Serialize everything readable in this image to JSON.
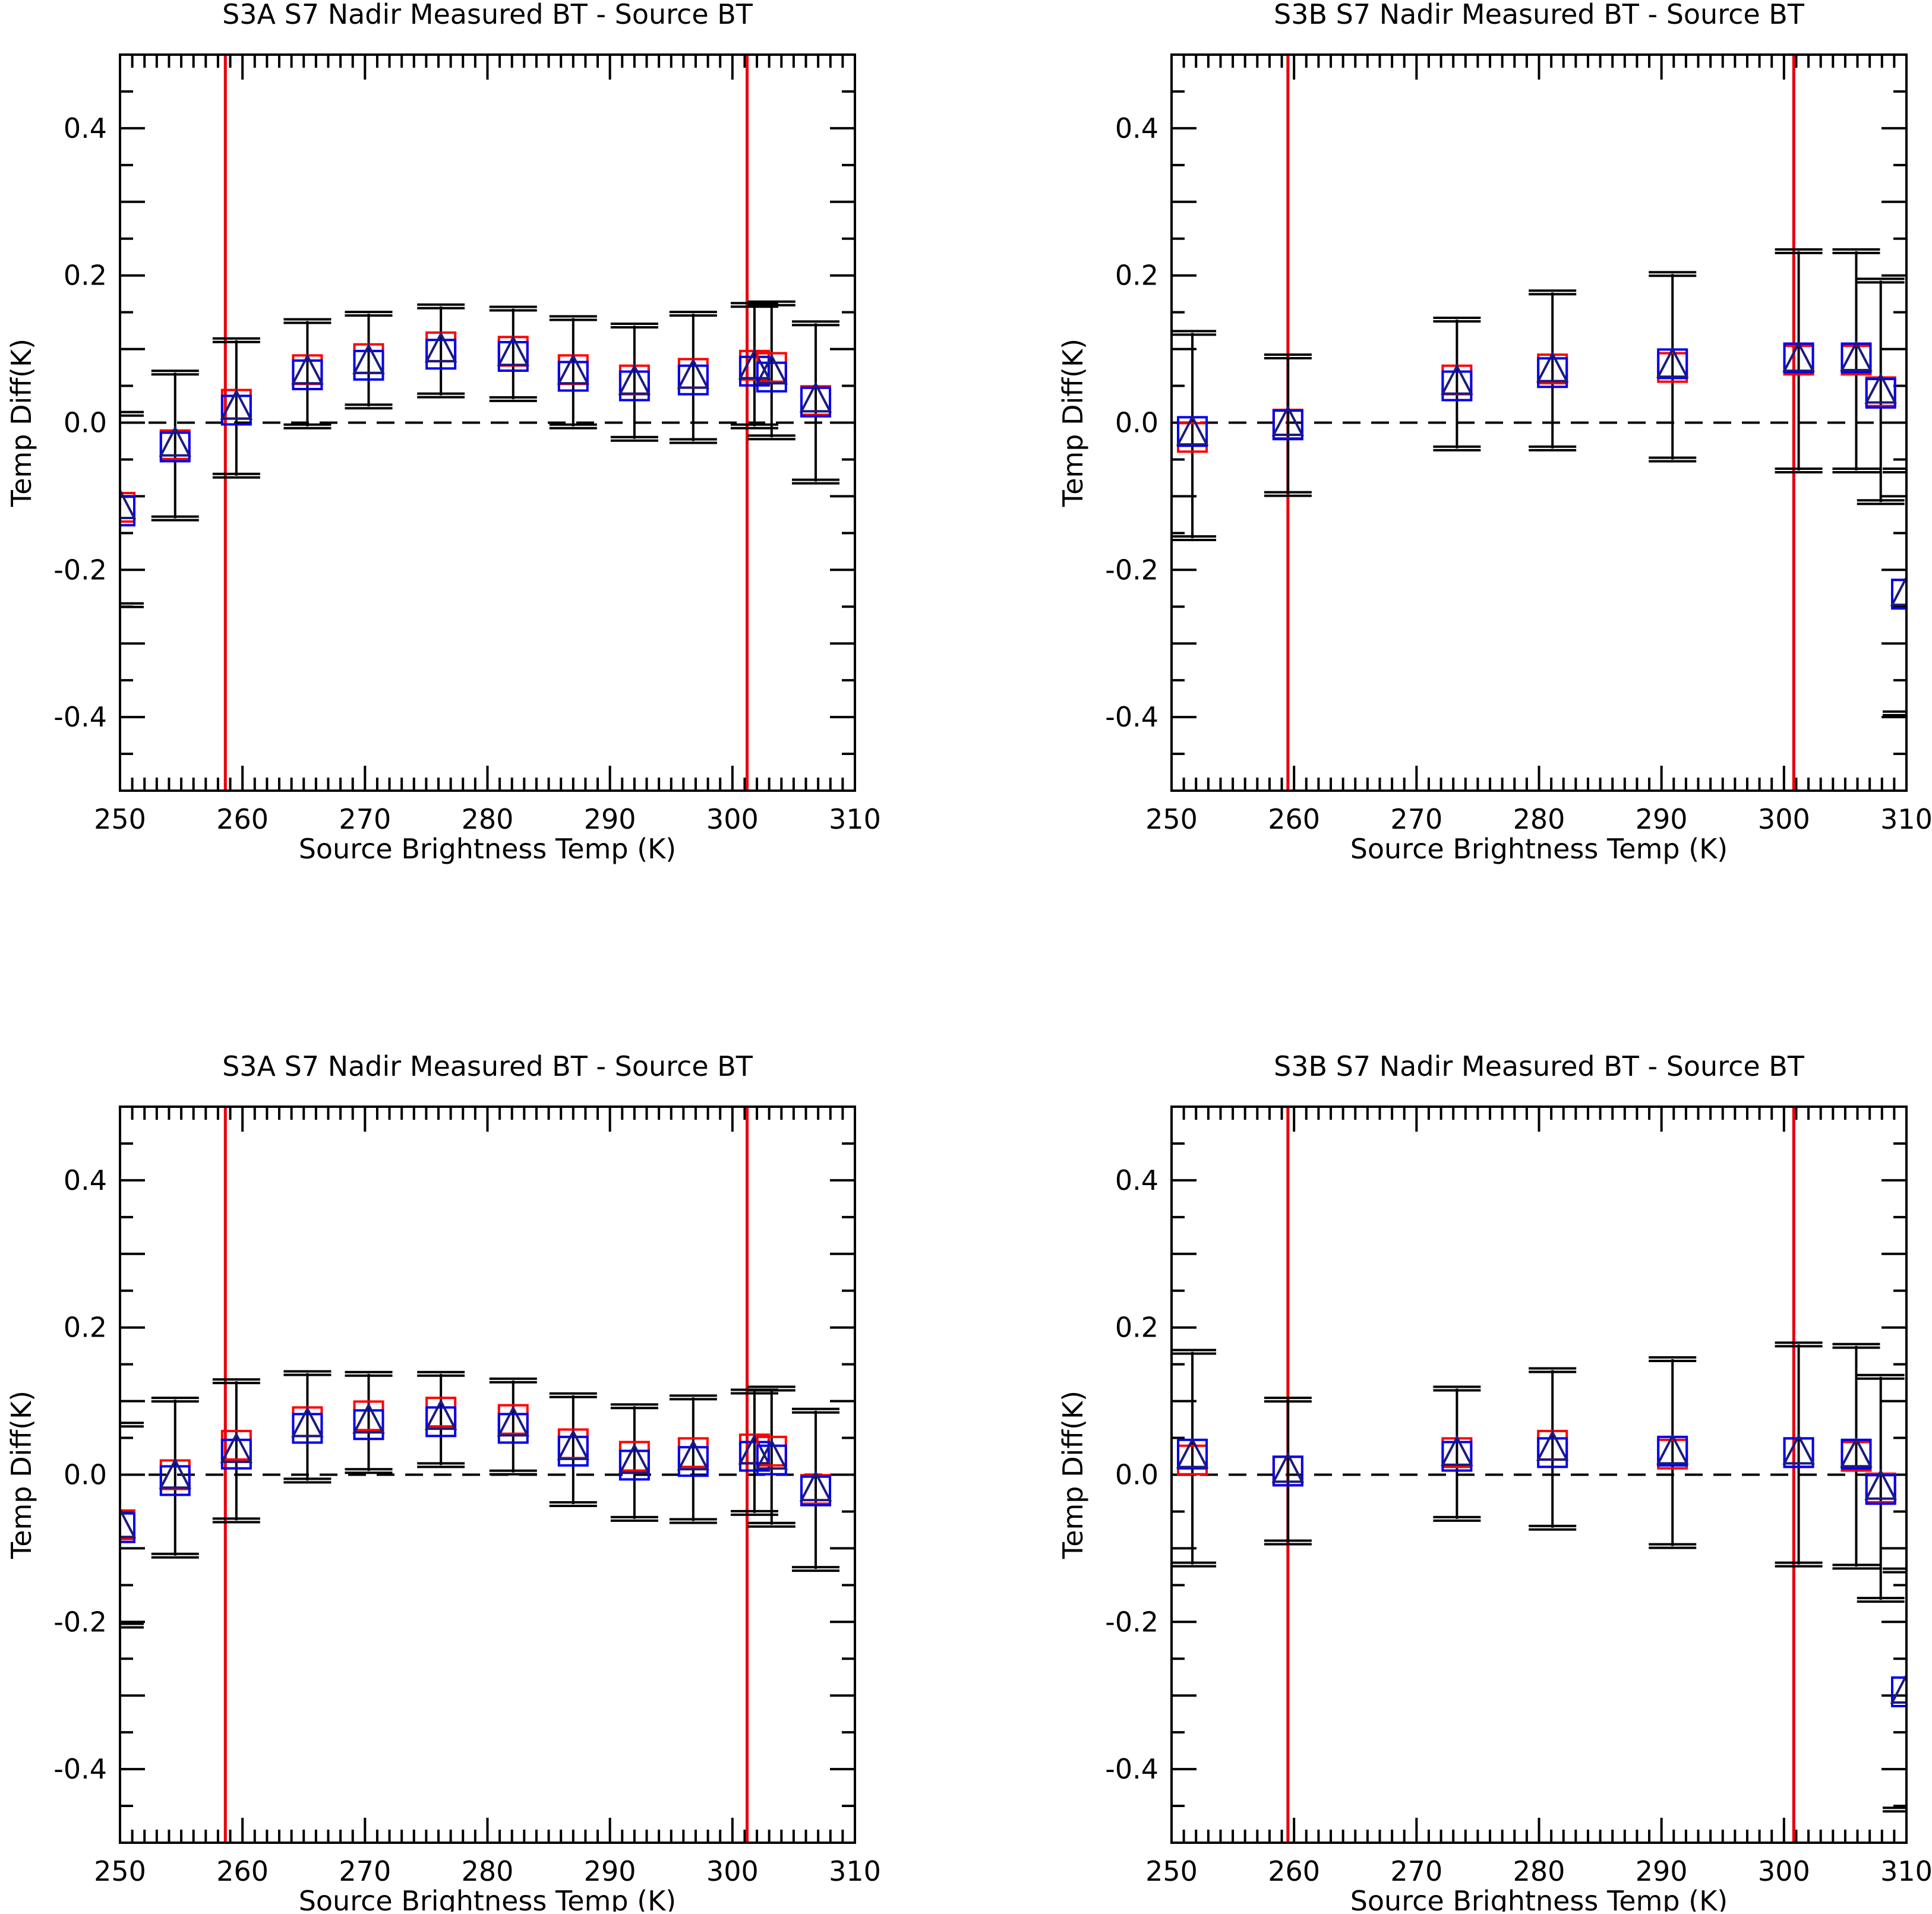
{
  "chart_data": [
    {
      "type": "scatter",
      "title": "S3A S7 Nadir Measured BT - Source BT",
      "xlabel": "Source Brightness Temp (K)",
      "ylabel": "Temp Diff(K)",
      "xlim": [
        250,
        310
      ],
      "ylim": [
        -0.5,
        0.5
      ],
      "xticks": [
        "250",
        "260",
        "270",
        "280",
        "290",
        "300",
        "310"
      ],
      "yticks": [
        "-0.4",
        "-0.2",
        "0.0",
        "0.2",
        "0.4"
      ],
      "reference_lines_x": [
        258.6,
        301.2
      ],
      "zero_line": 0.0,
      "points": [
        {
          "x": 250.0,
          "red": -0.115,
          "blue": -0.12,
          "tri": -0.115,
          "err_low": -0.248,
          "err_high": 0.012
        },
        {
          "x": 254.5,
          "red": -0.03,
          "blue": -0.033,
          "tri": -0.03,
          "err_low": -0.13,
          "err_high": 0.068
        },
        {
          "x": 259.5,
          "red": 0.025,
          "blue": 0.017,
          "tri": 0.02,
          "err_low": -0.072,
          "err_high": 0.112
        },
        {
          "x": 265.3,
          "red": 0.072,
          "blue": 0.065,
          "tri": 0.068,
          "err_low": -0.005,
          "err_high": 0.138
        },
        {
          "x": 270.3,
          "red": 0.087,
          "blue": 0.078,
          "tri": 0.082,
          "err_low": 0.022,
          "err_high": 0.148
        },
        {
          "x": 276.2,
          "red": 0.103,
          "blue": 0.093,
          "tri": 0.098,
          "err_low": 0.037,
          "err_high": 0.158
        },
        {
          "x": 282.1,
          "red": 0.097,
          "blue": 0.09,
          "tri": 0.093,
          "err_low": 0.032,
          "err_high": 0.155
        },
        {
          "x": 287.0,
          "red": 0.072,
          "blue": 0.063,
          "tri": 0.068,
          "err_low": -0.005,
          "err_high": 0.142
        },
        {
          "x": 292.0,
          "red": 0.058,
          "blue": 0.05,
          "tri": 0.054,
          "err_low": -0.022,
          "err_high": 0.132
        },
        {
          "x": 296.8,
          "red": 0.067,
          "blue": 0.058,
          "tri": 0.062,
          "err_low": -0.025,
          "err_high": 0.148
        },
        {
          "x": 301.8,
          "red": 0.078,
          "blue": 0.07,
          "tri": 0.075,
          "err_low": -0.005,
          "err_high": 0.16
        },
        {
          "x": 303.2,
          "red": 0.075,
          "blue": 0.062,
          "tri": 0.068,
          "err_low": -0.02,
          "err_high": 0.162
        },
        {
          "x": 306.8,
          "red": 0.03,
          "blue": 0.028,
          "tri": 0.03,
          "err_low": -0.08,
          "err_high": 0.135
        }
      ]
    },
    {
      "type": "scatter",
      "title": "S3B S7 Nadir Measured BT - Source BT",
      "xlabel": "Source Brightness Temp (K)",
      "ylabel": "Temp Diff(K)",
      "xlim": [
        250,
        310
      ],
      "ylim": [
        -0.5,
        0.5
      ],
      "xticks": [
        "250",
        "260",
        "270",
        "280",
        "290",
        "300",
        "310"
      ],
      "yticks": [
        "-0.4",
        "-0.2",
        "0.0",
        "0.2",
        "0.4"
      ],
      "reference_lines_x": [
        259.5,
        300.8
      ],
      "zero_line": 0.0,
      "points": [
        {
          "x": 251.7,
          "red": -0.02,
          "blue": -0.012,
          "tri": -0.015,
          "err_low": -0.157,
          "err_high": 0.122
        },
        {
          "x": 259.5,
          "red": -0.002,
          "blue": -0.003,
          "tri": -0.002,
          "err_low": -0.097,
          "err_high": 0.09
        },
        {
          "x": 273.3,
          "red": 0.058,
          "blue": 0.05,
          "tri": 0.054,
          "err_low": -0.035,
          "err_high": 0.14
        },
        {
          "x": 281.1,
          "red": 0.073,
          "blue": 0.068,
          "tri": 0.071,
          "err_low": -0.035,
          "err_high": 0.177
        },
        {
          "x": 290.9,
          "red": 0.075,
          "blue": 0.08,
          "tri": 0.077,
          "err_low": -0.05,
          "err_high": 0.202
        },
        {
          "x": 301.2,
          "red": 0.085,
          "blue": 0.088,
          "tri": 0.085,
          "err_low": -0.065,
          "err_high": 0.233
        },
        {
          "x": 305.9,
          "red": 0.085,
          "blue": 0.088,
          "tri": 0.086,
          "err_low": -0.065,
          "err_high": 0.233
        },
        {
          "x": 307.9,
          "red": 0.042,
          "blue": 0.04,
          "tri": 0.042,
          "err_low": -0.108,
          "err_high": 0.193
        },
        {
          "x": 310.0,
          "red": -0.233,
          "blue": -0.233,
          "tri": -0.233,
          "err_low": -0.395,
          "err_high": -0.065
        }
      ]
    },
    {
      "type": "scatter",
      "title": "S3A S7 Nadir Measured BT - Source BT",
      "xlabel": "Source Brightness Temp (K)",
      "ylabel": "Temp Diff(K)",
      "xlim": [
        250,
        310
      ],
      "ylim": [
        -0.5,
        0.5
      ],
      "xticks": [
        "250",
        "260",
        "270",
        "280",
        "290",
        "300",
        "310"
      ],
      "yticks": [
        "-0.4",
        "-0.2",
        "0.0",
        "0.2",
        "0.4"
      ],
      "reference_lines_x": [
        258.6,
        301.2
      ],
      "zero_line": 0.0,
      "points": [
        {
          "x": 250.0,
          "red": -0.068,
          "blue": -0.072,
          "tri": -0.07,
          "err_low": -0.205,
          "err_high": 0.068
        },
        {
          "x": 254.5,
          "red": 0.0,
          "blue": -0.008,
          "tri": -0.003,
          "err_low": -0.11,
          "err_high": 0.102
        },
        {
          "x": 259.5,
          "red": 0.04,
          "blue": 0.028,
          "tri": 0.032,
          "err_low": -0.062,
          "err_high": 0.127
        },
        {
          "x": 265.3,
          "red": 0.072,
          "blue": 0.063,
          "tri": 0.067,
          "err_low": -0.008,
          "err_high": 0.138
        },
        {
          "x": 270.3,
          "red": 0.08,
          "blue": 0.068,
          "tri": 0.072,
          "err_low": 0.005,
          "err_high": 0.137
        },
        {
          "x": 276.2,
          "red": 0.085,
          "blue": 0.072,
          "tri": 0.077,
          "err_low": 0.013,
          "err_high": 0.137
        },
        {
          "x": 282.1,
          "red": 0.075,
          "blue": 0.063,
          "tri": 0.068,
          "err_low": 0.003,
          "err_high": 0.128
        },
        {
          "x": 287.0,
          "red": 0.042,
          "blue": 0.032,
          "tri": 0.036,
          "err_low": -0.04,
          "err_high": 0.108
        },
        {
          "x": 292.0,
          "red": 0.025,
          "blue": 0.013,
          "tri": 0.017,
          "err_low": -0.06,
          "err_high": 0.093
        },
        {
          "x": 296.8,
          "red": 0.03,
          "blue": 0.018,
          "tri": 0.022,
          "err_low": -0.063,
          "err_high": 0.105
        },
        {
          "x": 301.8,
          "red": 0.035,
          "blue": 0.025,
          "tri": 0.03,
          "err_low": -0.052,
          "err_high": 0.113
        },
        {
          "x": 303.2,
          "red": 0.032,
          "blue": 0.02,
          "tri": 0.023,
          "err_low": -0.068,
          "err_high": 0.117
        },
        {
          "x": 306.8,
          "red": -0.02,
          "blue": -0.022,
          "tri": -0.02,
          "err_low": -0.128,
          "err_high": 0.087
        }
      ]
    },
    {
      "type": "scatter",
      "title": "S3B S7 Nadir Measured BT - Source BT",
      "xlabel": "Source Brightness Temp (K)",
      "ylabel": "Temp Diff(K)",
      "xlim": [
        250,
        310
      ],
      "ylim": [
        -0.5,
        0.5
      ],
      "xticks": [
        "250",
        "260",
        "270",
        "280",
        "290",
        "300",
        "310"
      ],
      "yticks": [
        "-0.4",
        "-0.2",
        "0.0",
        "0.2",
        "0.4"
      ],
      "reference_lines_x": [
        259.5,
        300.8
      ],
      "zero_line": 0.0,
      "points": [
        {
          "x": 251.7,
          "red": 0.02,
          "blue": 0.028,
          "tri": 0.025,
          "err_low": -0.122,
          "err_high": 0.167
        },
        {
          "x": 259.5,
          "red": 0.005,
          "blue": 0.005,
          "tri": 0.005,
          "err_low": -0.092,
          "err_high": 0.102
        },
        {
          "x": 273.3,
          "red": 0.03,
          "blue": 0.025,
          "tri": 0.028,
          "err_low": -0.06,
          "err_high": 0.117
        },
        {
          "x": 281.1,
          "red": 0.04,
          "blue": 0.03,
          "tri": 0.035,
          "err_low": -0.072,
          "err_high": 0.142
        },
        {
          "x": 290.9,
          "red": 0.028,
          "blue": 0.032,
          "tri": 0.03,
          "err_low": -0.097,
          "err_high": 0.157
        },
        {
          "x": 301.2,
          "red": 0.03,
          "blue": 0.03,
          "tri": 0.03,
          "err_low": -0.122,
          "err_high": 0.177
        },
        {
          "x": 305.9,
          "red": 0.025,
          "blue": 0.028,
          "tri": 0.026,
          "err_low": -0.125,
          "err_high": 0.175
        },
        {
          "x": 307.9,
          "red": -0.018,
          "blue": -0.02,
          "tri": -0.018,
          "err_low": -0.17,
          "err_high": 0.133
        },
        {
          "x": 310.0,
          "red": -0.295,
          "blue": -0.295,
          "tri": -0.295,
          "err_low": -0.455,
          "err_high": -0.13
        }
      ]
    }
  ],
  "colors": {
    "reference_line": "#e8000b",
    "red_marker": "#ff0000",
    "blue_marker": "#0000ee",
    "triangle": "#1a1a80",
    "error_bar": "#000000",
    "axis": "#000000"
  }
}
